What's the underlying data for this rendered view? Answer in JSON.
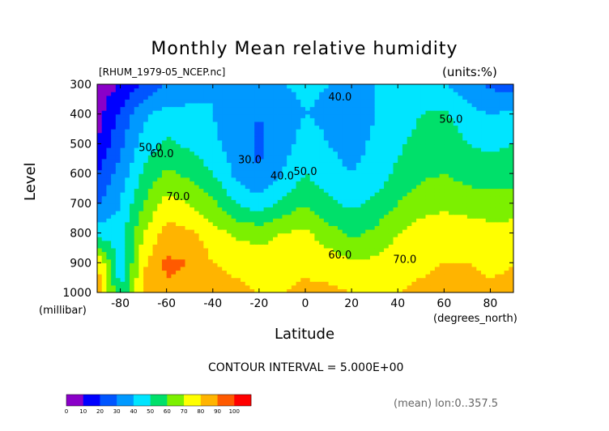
{
  "chart_data": {
    "type": "heatmap",
    "title": "Monthly Mean relative humidity",
    "subtitle_left": "[RHUM_1979-05_NCEP.nc]",
    "subtitle_right": "(units:%)",
    "xlabel": "Latitude",
    "x_unit": "(degrees_north)",
    "ylabel": "Level",
    "y_unit": "(millibar)",
    "footer_interval": "CONTOUR INTERVAL = 5.000E+00",
    "footer_mean": "(mean) lon:0..357.5",
    "xlim": [
      -90,
      90
    ],
    "ylim": [
      1000,
      300
    ],
    "x_ticks": [
      -80,
      -60,
      -40,
      -20,
      0,
      20,
      40,
      60,
      80
    ],
    "x_tick_labels": [
      "-80",
      "-60",
      "-40",
      "-20",
      "0",
      "20",
      "40",
      "60",
      "80"
    ],
    "y_ticks": [
      300,
      400,
      500,
      600,
      700,
      800,
      900,
      1000
    ],
    "y_tick_labels": [
      "300",
      "400",
      "500",
      "600",
      "700",
      "800",
      "900",
      "1000"
    ],
    "colorbar": {
      "bounds": [
        0,
        10,
        20,
        30,
        40,
        50,
        60,
        70,
        80,
        90,
        100
      ],
      "labels": [
        "0",
        "10",
        "20",
        "30",
        "40",
        "50",
        "60",
        "70",
        "80",
        "90",
        "100"
      ],
      "colors": [
        "#8a00c8",
        "#0000ff",
        "#0055ff",
        "#0099ff",
        "#00e5ff",
        "#00e06a",
        "#7cf000",
        "#ffff00",
        "#ffb400",
        "#ff5a00",
        "#ff0000"
      ]
    },
    "lat": [
      -90,
      -80,
      -70,
      -60,
      -50,
      -40,
      -30,
      -20,
      -10,
      0,
      10,
      20,
      30,
      40,
      50,
      60,
      70,
      80,
      90
    ],
    "levels": [
      1000,
      900,
      800,
      700,
      600,
      500,
      400,
      300
    ],
    "values": [
      [
        88,
        50,
        82,
        88,
        86,
        84,
        82,
        80,
        80,
        82,
        82,
        80,
        78,
        80,
        82,
        85,
        84,
        82,
        82
      ],
      [
        82,
        42,
        78,
        92,
        90,
        80,
        78,
        76,
        76,
        78,
        76,
        72,
        72,
        76,
        78,
        80,
        80,
        78,
        80
      ],
      [
        45,
        45,
        70,
        84,
        82,
        74,
        68,
        66,
        70,
        72,
        64,
        58,
        62,
        70,
        74,
        76,
        75,
        74,
        74
      ],
      [
        28,
        40,
        60,
        74,
        70,
        62,
        50,
        44,
        52,
        60,
        52,
        48,
        52,
        60,
        66,
        68,
        66,
        64,
        65
      ],
      [
        20,
        34,
        52,
        62,
        58,
        50,
        38,
        30,
        40,
        50,
        44,
        40,
        44,
        52,
        58,
        60,
        56,
        55,
        56
      ],
      [
        10,
        28,
        44,
        52,
        48,
        42,
        36,
        28,
        36,
        44,
        40,
        36,
        42,
        48,
        54,
        56,
        50,
        48,
        50
      ],
      [
        6,
        22,
        38,
        44,
        42,
        40,
        34,
        30,
        34,
        40,
        38,
        32,
        40,
        44,
        50,
        52,
        44,
        40,
        42
      ],
      [
        4,
        10,
        22,
        30,
        36,
        40,
        40,
        38,
        40,
        42,
        40,
        38,
        40,
        42,
        44,
        40,
        34,
        28,
        26
      ]
    ],
    "contour_labels": [
      {
        "text": "40.0",
        "lat": 15,
        "level": 355
      },
      {
        "text": "50.0",
        "lat": 63,
        "level": 430
      },
      {
        "text": "50.0",
        "lat": -67,
        "level": 525
      },
      {
        "text": "60.0",
        "lat": -62,
        "level": 545
      },
      {
        "text": "30.0",
        "lat": -24,
        "level": 565
      },
      {
        "text": "40.0",
        "lat": -10,
        "level": 620
      },
      {
        "text": "50.0",
        "lat": 0,
        "level": 605
      },
      {
        "text": "70.0",
        "lat": -55,
        "level": 690
      },
      {
        "text": "60.0",
        "lat": 15,
        "level": 885
      },
      {
        "text": "70.0",
        "lat": 43,
        "level": 900
      }
    ],
    "grid": false,
    "legend": "bottom-left"
  }
}
